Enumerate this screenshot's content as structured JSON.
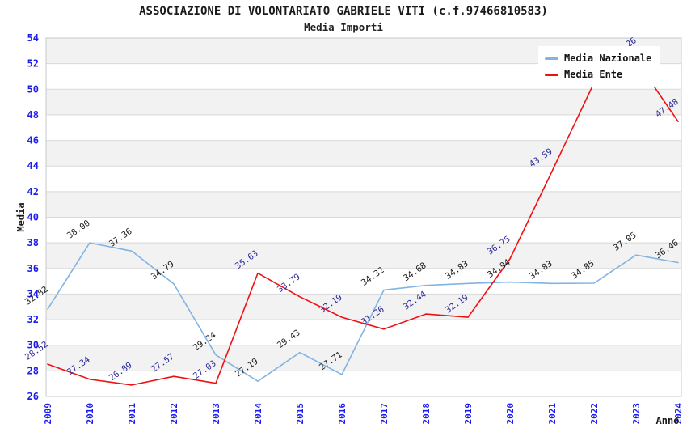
{
  "header": {
    "title": "ASSOCIAZIONE DI VOLONTARIATO GABRIELE VITI (c.f.97466810583)",
    "subtitle": "Media Importi"
  },
  "legend": [
    {
      "label": "Media Nazionale",
      "color": "#82b4e2"
    },
    {
      "label": "Media Ente",
      "color": "#ee1111"
    }
  ],
  "colors": {
    "tick_label": "#1c1cf0",
    "band": "#f2f2f2",
    "gridline": "#d9d9d9",
    "plot_border": "#c8c8c8",
    "nazionale_line": "#82b4e2",
    "ente_line": "#ee1111",
    "nazionale_point_label": "#1a1a1a",
    "ente_point_label": "#2a2a99"
  },
  "chart_data": {
    "type": "line",
    "title": "ASSOCIAZIONE DI VOLONTARIATO GABRIELE VITI (c.f.97466810583)",
    "subtitle": "Media Importi",
    "xlabel": "Anno",
    "ylabel": "Media",
    "x": [
      2009,
      2010,
      2011,
      2012,
      2013,
      2014,
      2015,
      2016,
      2017,
      2018,
      2019,
      2020,
      2021,
      2022,
      2023,
      2024
    ],
    "ylim": [
      26,
      54
    ],
    "ytick_step": 2,
    "grid": true,
    "legend_position": "top-right",
    "series": [
      {
        "name": "Media Nazionale",
        "color": "#82b4e2",
        "label_color": "#1a1a1a",
        "values": [
          32.82,
          38.0,
          37.36,
          34.79,
          29.24,
          27.19,
          29.43,
          27.71,
          34.32,
          34.68,
          34.83,
          34.94,
          34.83,
          34.85,
          37.05,
          36.46
        ],
        "labels": [
          "32.82",
          "38.00",
          "37.36",
          "34.79",
          "29.24",
          "27.19",
          "29.43",
          "27.71",
          "34.32",
          "34.68",
          "34.83",
          "34.94",
          "34.83",
          "34.85",
          "37.05",
          "36.46"
        ]
      },
      {
        "name": "Media Ente",
        "color": "#ee1111",
        "label_color": "#2a2a99",
        "values": [
          28.52,
          27.34,
          26.89,
          27.57,
          27.03,
          35.63,
          33.79,
          32.19,
          31.26,
          32.44,
          32.19,
          36.75,
          43.59,
          50.5,
          52.26,
          47.48
        ],
        "labels": [
          "28.52",
          "27.34",
          "26.89",
          "27.57",
          "27.03",
          "35.63",
          "33.79",
          "32.19",
          "31.26",
          "32.44",
          "32.19",
          "36.75",
          "43.59",
          "",
          "52.26",
          "47.48"
        ]
      }
    ]
  }
}
